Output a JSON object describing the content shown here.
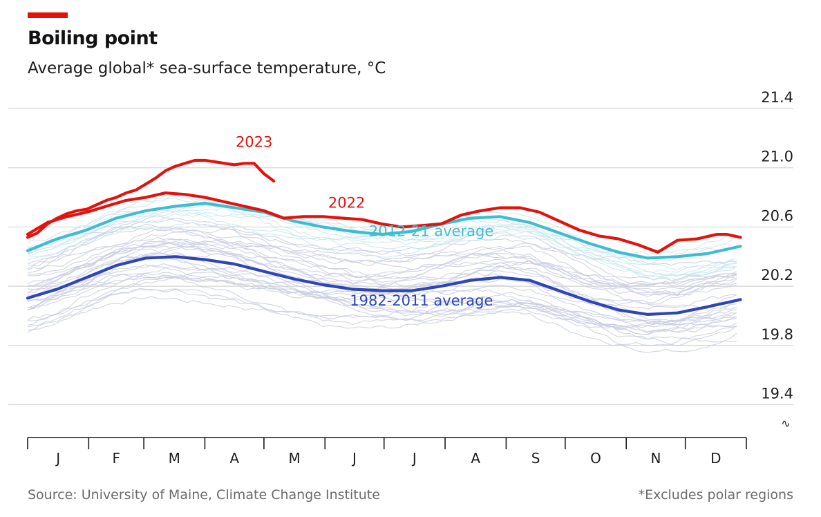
{
  "header": {
    "title": "Boiling point",
    "subtitle": "Average global* sea-surface temperature, °C",
    "accent_color": "#e3120b"
  },
  "footer": {
    "source": "Source: University of Maine, Climate Change Institute",
    "note": "*Excludes polar regions"
  },
  "chart_data": {
    "type": "line",
    "xlabel": "",
    "ylabel": "",
    "xlim": [
      0,
      365
    ],
    "ylim": [
      19.3,
      21.4
    ],
    "y_ticks": [
      19.4,
      19.8,
      20.2,
      20.6,
      21.0,
      21.4
    ],
    "y_tick_labels": [
      "19.4",
      "19.8",
      "20.2",
      "20.6",
      "21.0",
      "21.4"
    ],
    "month_labels": [
      "J",
      "F",
      "M",
      "A",
      "M",
      "J",
      "J",
      "A",
      "S",
      "O",
      "N",
      "D"
    ],
    "grid": true,
    "axis_break_symbol": "∿",
    "series": [
      {
        "name": "2023",
        "color": "#e3120b",
        "label_day": 115,
        "label_value": 21.14,
        "x": [
          0,
          5,
          10,
          15,
          20,
          25,
          30,
          35,
          40,
          45,
          50,
          55,
          60,
          65,
          70,
          75,
          80,
          85,
          90,
          95,
          100,
          105,
          110,
          115,
          120,
          125
        ],
        "y": [
          20.53,
          20.56,
          20.62,
          20.66,
          20.69,
          20.71,
          20.72,
          20.75,
          20.78,
          20.8,
          20.83,
          20.85,
          20.89,
          20.93,
          20.98,
          21.01,
          21.03,
          21.05,
          21.05,
          21.04,
          21.03,
          21.02,
          21.03,
          21.03,
          20.96,
          20.91
        ]
      },
      {
        "name": "2022",
        "color": "#e3120b",
        "label_day": 162,
        "label_value": 20.73,
        "x": [
          0,
          10,
          20,
          30,
          40,
          50,
          60,
          70,
          80,
          90,
          100,
          110,
          120,
          130,
          140,
          150,
          160,
          170,
          180,
          190,
          200,
          210,
          220,
          230,
          240,
          250,
          260,
          270,
          280,
          290,
          300,
          310,
          320,
          330,
          340,
          350,
          355,
          362
        ],
        "y": [
          20.55,
          20.63,
          20.67,
          20.7,
          20.74,
          20.78,
          20.8,
          20.83,
          20.82,
          20.8,
          20.77,
          20.74,
          20.71,
          20.66,
          20.67,
          20.67,
          20.66,
          20.65,
          20.62,
          20.6,
          20.61,
          20.62,
          20.68,
          20.71,
          20.73,
          20.73,
          20.7,
          20.64,
          20.58,
          20.54,
          20.52,
          20.48,
          20.43,
          20.51,
          20.52,
          20.55,
          20.55,
          20.53
        ]
      },
      {
        "name": "2012-21 average",
        "color": "#3ebcd2",
        "label_day": 205,
        "label_value": 20.54,
        "x": [
          0,
          15,
          30,
          45,
          60,
          75,
          90,
          105,
          120,
          135,
          150,
          165,
          180,
          195,
          210,
          225,
          240,
          255,
          270,
          285,
          300,
          315,
          330,
          345,
          362
        ],
        "y": [
          20.44,
          20.52,
          20.58,
          20.66,
          20.71,
          20.74,
          20.76,
          20.73,
          20.7,
          20.64,
          20.6,
          20.57,
          20.55,
          20.57,
          20.62,
          20.66,
          20.67,
          20.63,
          20.56,
          20.49,
          20.43,
          20.39,
          20.4,
          20.42,
          20.47
        ]
      },
      {
        "name": "1982-2011 average",
        "color": "#2e45b8",
        "label_day": 200,
        "label_value": 20.07,
        "x": [
          0,
          15,
          30,
          45,
          60,
          75,
          90,
          105,
          120,
          135,
          150,
          165,
          180,
          195,
          210,
          225,
          240,
          255,
          270,
          285,
          300,
          315,
          330,
          345,
          362
        ],
        "y": [
          20.12,
          20.18,
          20.26,
          20.34,
          20.39,
          20.4,
          20.38,
          20.35,
          20.3,
          20.25,
          20.21,
          20.18,
          20.17,
          20.17,
          20.2,
          20.24,
          20.26,
          20.24,
          20.17,
          20.1,
          20.04,
          20.01,
          20.02,
          20.06,
          20.11
        ]
      }
    ],
    "background_years": {
      "color": "#c8cde0",
      "recent_color": "#c6e6ef",
      "count_shown": "1982-2021",
      "note": "individual years"
    }
  }
}
